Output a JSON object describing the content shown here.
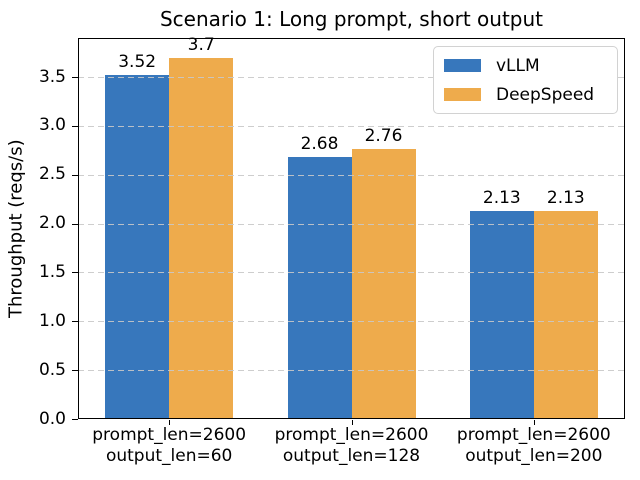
{
  "chart_data": {
    "type": "bar",
    "title": "Scenario 1: Long prompt, short output",
    "xlabel": "",
    "ylabel": "Throughput (reqs/s)",
    "categories": [
      {
        "line1": "prompt_len=2600",
        "line2": "output_len=60"
      },
      {
        "line1": "prompt_len=2600",
        "line2": "output_len=128"
      },
      {
        "line1": "prompt_len=2600",
        "line2": "output_len=200"
      }
    ],
    "series": [
      {
        "name": "vLLM",
        "color": "#3777bc",
        "values": [
          3.52,
          2.68,
          2.13
        ],
        "value_labels": [
          "3.52",
          "2.68",
          "2.13"
        ]
      },
      {
        "name": "DeepSpeed",
        "color": "#eeab4c",
        "values": [
          3.7,
          2.76,
          2.13
        ],
        "value_labels": [
          "3.7",
          "2.76",
          "2.13"
        ]
      }
    ],
    "ylim": [
      0,
      3.9
    ],
    "yticks": [
      0,
      0.5,
      1,
      1.5,
      2,
      2.5,
      3,
      3.5
    ],
    "ytick_labels": [
      "0.0",
      "0.5",
      "1.0",
      "1.5",
      "2.0",
      "2.5",
      "3.0",
      "3.5"
    ],
    "grid": {
      "axis": "y",
      "style": "dashed",
      "color": "#c8c8c8",
      "drawn_over_bars": true
    },
    "legend": {
      "position": "upper-right"
    },
    "bar_width_fraction": 0.35
  }
}
